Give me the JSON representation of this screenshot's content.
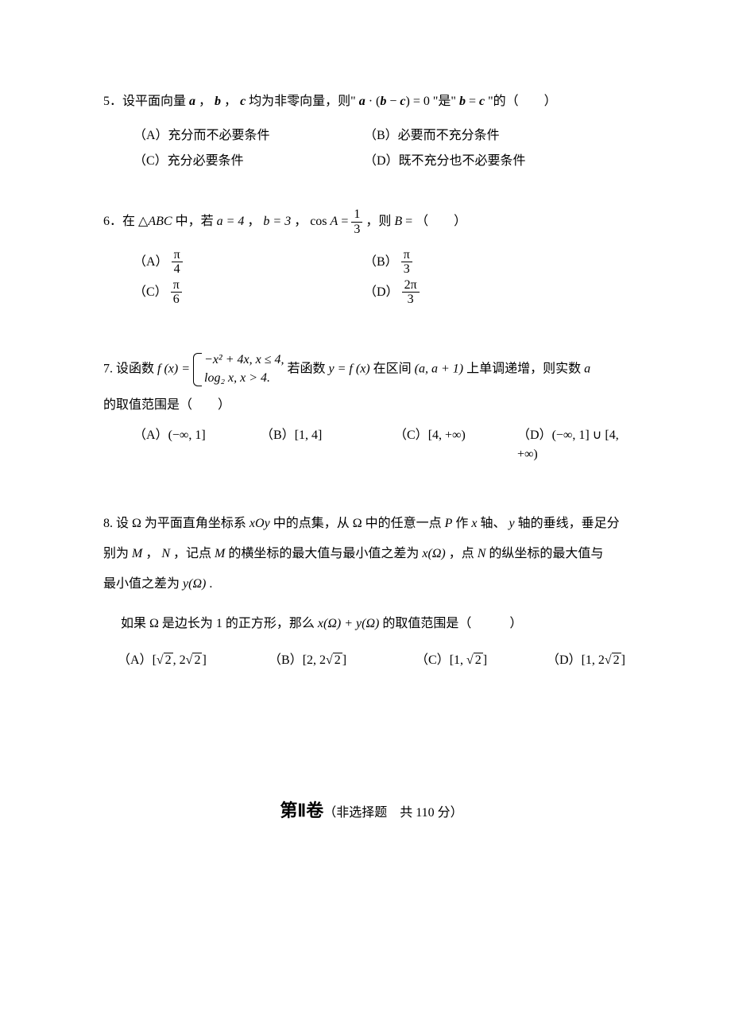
{
  "q5": {
    "num": "5．",
    "stem_a": "设平面向量 ",
    "vec_a": "a",
    "stem_b": " ， ",
    "vec_b": "b",
    "stem_c": " ， ",
    "vec_c": "c",
    "stem_d": " 均为非零向量，则\" ",
    "eq_lhs": "a",
    "eq_dot": " · (",
    "eq_b": "b",
    "eq_minus": " − ",
    "eq_c": "c",
    "eq_rhs": ") = 0",
    "stem_e": " \"是\" ",
    "eq2_b": "b",
    "eq2_eq": " = ",
    "eq2_c": "c",
    "stem_f": " \"的",
    "paren": "（　　）",
    "optA": "（A）充分而不必要条件",
    "optB": "（B）必要而不充分条件",
    "optC": "（C）充分必要条件",
    "optD": "（D）既不充分也不必要条件"
  },
  "q6": {
    "num": "6．",
    "stem_a": "在 ",
    "tri": "△",
    "abc": "ABC",
    "stem_b": " 中，若 ",
    "a_eq": "a = 4",
    "stem_c": " ， ",
    "b_eq": "b = 3",
    "stem_d": " ， ",
    "cos": "cos ",
    "A": "A",
    "eq": " = ",
    "one": "1",
    "three": "3",
    "stem_e": " ，则 ",
    "B": "B",
    "eq2": " = ",
    "paren": "（　　）",
    "optA_lbl": "（A）",
    "optB_lbl": "（B）",
    "optC_lbl": "（C）",
    "optD_lbl": "（D）",
    "pi": "π",
    "four": "4",
    "six": "6",
    "two_pi": "2π"
  },
  "q7": {
    "num": "7.  ",
    "stem_a": "设函数 ",
    "fx": "f (x) = ",
    "case1": "−x² + 4x,  x ≤ 4,",
    "case2": "log₂ x,      x > 4.",
    "stem_b": " 若函数 ",
    "y_eq": "y = f (x)",
    "stem_c": " 在区间 ",
    "interval": "(a, a + 1)",
    "stem_d": " 上单调递增，则实数 ",
    "a_var": "a",
    "stem_line2": "的取值范围是（　　）",
    "optA_lbl": "（A）",
    "optA_val": "(−∞, 1]",
    "optB_lbl": "（B）",
    "optB_val": "[1, 4]",
    "optC_lbl": "（C）",
    "optC_val": "[4, +∞)",
    "optD_lbl": "（D）",
    "optD_val": "(−∞, 1] ∪ [4, +∞)"
  },
  "q8": {
    "num": "8.  ",
    "stem_a": "设 ",
    "Omega": "Ω",
    "stem_b": " 为平面直角坐标系 ",
    "xOy": "xOy",
    "stem_c": " 中的点集，从 ",
    "stem_d": " 中的任意一点 ",
    "P": "P",
    "stem_e": " 作 ",
    "x_ax": "x",
    "stem_f": " 轴、 ",
    "y_ax": "y",
    "stem_g": " 轴的垂线，垂足分",
    "line2_a": "别为 ",
    "M": "M",
    "line2_b": " ， ",
    "N": "N",
    "line2_c": " ，记点 ",
    "line2_d": " 的横坐标的最大值与最小值之差为 ",
    "xOmega": "x(Ω)",
    "line2_e": " ，点 ",
    "line2_f": " 的纵坐标的最大值与",
    "line3_a": "最小值之差为 ",
    "yOmega": "y(Ω)",
    "line3_b": " .",
    "line4_a": "如果 ",
    "line4_b": " 是边长为 1 的正方形，那么 ",
    "sumExpr": "x(Ω) + y(Ω)",
    "line4_c": " 的取值范围是",
    "paren": "（　　　）",
    "optA_lbl": "（A）",
    "optB_lbl": "（B）",
    "optC_lbl": "（C）",
    "optD_lbl": "（D）",
    "sqrt2": "2",
    "lbrack": "[",
    "rbrack": "]",
    "comma": ", ",
    "two": "2",
    "one": "1"
  },
  "section": {
    "title_main": "第Ⅱ卷",
    "title_sub": "（非选择题　共 110 分）"
  }
}
